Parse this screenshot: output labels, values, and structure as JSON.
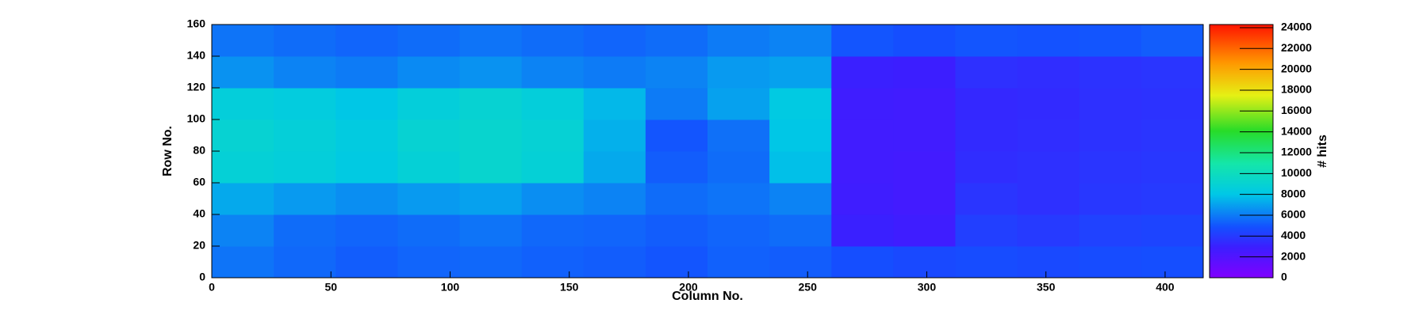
{
  "chart_data": {
    "type": "heatmap",
    "x_label": "Column No.",
    "y_label": "Row No.",
    "z_label": "# hits",
    "colormap": "rainbow",
    "xbins": [
      0,
      26,
      52,
      78,
      104,
      130,
      156,
      182,
      208,
      234,
      260,
      286,
      312,
      338,
      364,
      390,
      416
    ],
    "ybins": [
      0,
      20,
      40,
      60,
      80,
      100,
      120,
      140,
      160
    ],
    "values": [
      [
        5800,
        5500,
        5200,
        5400,
        5500,
        5300,
        5200,
        5000,
        5300,
        5200,
        4800,
        4600,
        4700,
        4600,
        4700,
        4800
      ],
      [
        6200,
        5600,
        5400,
        5600,
        5800,
        5500,
        5400,
        5200,
        5400,
        5600,
        3000,
        2800,
        4200,
        4000,
        4300,
        4400
      ],
      [
        7200,
        6800,
        6500,
        6800,
        7000,
        6500,
        6200,
        5600,
        5800,
        6200,
        2800,
        2600,
        3800,
        3600,
        3900,
        4000
      ],
      [
        8800,
        8600,
        8200,
        8800,
        9200,
        8800,
        7200,
        5200,
        5600,
        7800,
        2700,
        2600,
        3500,
        3600,
        3800,
        3900
      ],
      [
        9000,
        8700,
        8300,
        9000,
        9200,
        8900,
        7400,
        5000,
        5700,
        8000,
        2700,
        2700,
        3400,
        3500,
        3700,
        3800
      ],
      [
        8600,
        8400,
        8000,
        8600,
        9000,
        8600,
        7600,
        6000,
        7000,
        8200,
        2800,
        2700,
        3300,
        3400,
        3600,
        3700
      ],
      [
        6600,
        6200,
        6000,
        6400,
        6600,
        6200,
        6000,
        6200,
        6800,
        7000,
        3000,
        2900,
        3600,
        3500,
        3700,
        3800
      ],
      [
        5800,
        5600,
        5400,
        5600,
        5800,
        5600,
        5400,
        5600,
        6000,
        6200,
        5000,
        4800,
        5000,
        4900,
        5000,
        5200
      ]
    ],
    "xlim": [
      0,
      416
    ],
    "xticks": [
      0,
      50,
      100,
      150,
      200,
      250,
      300,
      350,
      400
    ],
    "ylim": [
      0,
      160
    ],
    "yticks": [
      0,
      20,
      40,
      60,
      80,
      100,
      120,
      140,
      160
    ],
    "zlim": [
      0,
      24300
    ],
    "zticks": [
      0,
      2000,
      4000,
      6000,
      8000,
      10000,
      12000,
      14000,
      16000,
      18000,
      20000,
      22000,
      24000
    ]
  }
}
